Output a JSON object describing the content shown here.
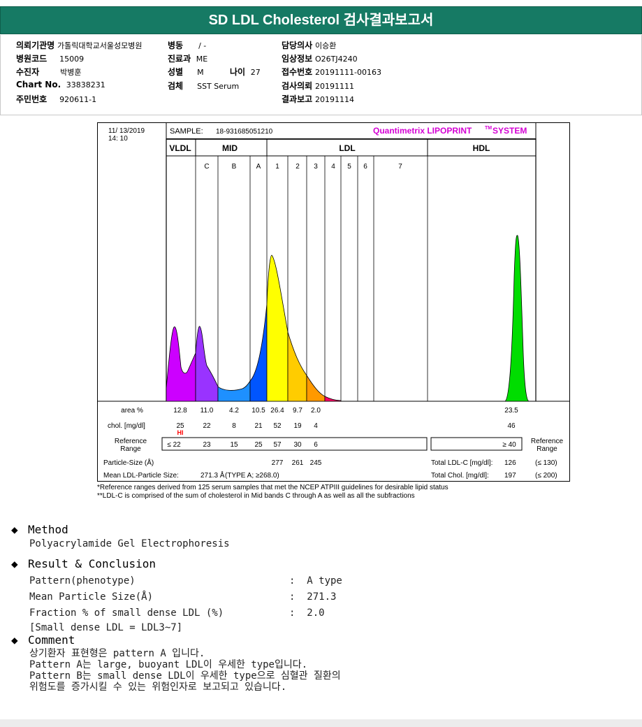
{
  "report": {
    "title": "SD LDL Cholesterol 검사결과보고서"
  },
  "info": {
    "col1": [
      {
        "label": "의뢰기관명",
        "value": "가톨릭대학교서울성모병원"
      },
      {
        "label": "병원코드",
        "value": "15009"
      },
      {
        "label": "수진자",
        "value": "박병훈"
      },
      {
        "label": "Chart No.",
        "value": "33838231"
      },
      {
        "label": "주민번호",
        "value": "920611-1"
      }
    ],
    "col2": [
      {
        "label": "병동",
        "value": "/ -"
      },
      {
        "label": "진료과",
        "value": "ME"
      },
      {
        "label": "성별",
        "value": "M"
      },
      {
        "label": "검체",
        "value": "SST Serum"
      }
    ],
    "age": {
      "label": "나이",
      "value": "27"
    },
    "col3": [
      {
        "label": "담당의사",
        "value": "이승환"
      },
      {
        "label": "임상정보",
        "value": "O26TJ4240"
      },
      {
        "label": "접수번호",
        "value": "20191111-00163"
      },
      {
        "label": "검사의뢰",
        "value": "20191111"
      },
      {
        "label": "결과보고",
        "value": "20191114"
      }
    ]
  },
  "chart": {
    "date": "11/ 13/2019",
    "time": "14: 10",
    "sample_label": "SAMPLE:",
    "sample_id": "18-931685051210",
    "brand": "Quantimetrix LIPOPRINT",
    "brand_tm": "TM",
    "brand_system": "SYSTEM",
    "groups": {
      "vldl": "VLDL",
      "mid": "MID",
      "ldl": "LDL",
      "hdl": "HDL"
    },
    "bands": [
      "C",
      "B",
      "A",
      "1",
      "2",
      "3",
      "4",
      "5",
      "6",
      "7"
    ],
    "colors": {
      "vldl": "#cc00ff",
      "midc": "#9933ff",
      "midb": "#1e90ff",
      "mida": "#0055ff",
      "ldl1": "#ffff00",
      "ldl2": "#ffcc00",
      "ldl3": "#ff9900",
      "ldl4": "#ff0066",
      "hdl": "#00dd00",
      "brand": "#d400d4",
      "hi": "#ff0000"
    },
    "table": {
      "area_label": "area %",
      "area": [
        "12.8",
        "11.0",
        "4.2",
        "10.5",
        "26.4",
        "9.7",
        "2.0"
      ],
      "hdl_area": "23.5",
      "chol_label": "chol. [mg/dl]",
      "chol": [
        "25",
        "22",
        "8",
        "21",
        "52",
        "19",
        "4"
      ],
      "hdl_chol": "46",
      "hi_flag": "HI",
      "ref_label_1": "Reference",
      "ref_label_2": "Range",
      "ref": [
        "≤ 22",
        "23",
        "15",
        "25",
        "57",
        "30",
        "6"
      ],
      "hdl_ref": "≥ 40",
      "particle_label": "Particle-Size (Å)",
      "particle": [
        "277",
        "261",
        "245"
      ],
      "mean_label": "Mean LDL-Particle Size:",
      "mean_value": "271.3 Å",
      "mean_type": "(TYPE A; ≥268.0)",
      "total_ldl_label": "Total LDL-C [mg/dl]:",
      "total_ldl_value": "126",
      "total_ldl_ref": "(≤ 130)",
      "total_chol_label": "Total Chol. [mg/dl]:",
      "total_chol_value": "197",
      "total_chol_ref": "(≤ 200)"
    }
  },
  "footnotes": {
    "line1": "*Reference ranges derived from 125 serum samples that met the NCEP ATPIII guidelines for desirable lipid status",
    "line2": "**LDL-C is comprised of the sum of cholesterol in Mid bands C through A as well as all the subfractions"
  },
  "method": {
    "bullet": "◆",
    "title": "Method",
    "text": "Polyacrylamide Gel Electrophoresis"
  },
  "result": {
    "bullet": "◆",
    "title": "Result & Conclusion",
    "rows": [
      {
        "label": "Pattern(phenotype)",
        "value": ":  A type"
      },
      {
        "label": "Mean Particle Size(Å)",
        "value": ":  271.3"
      },
      {
        "label": "Fraction % of small dense LDL (%)",
        "value": ":  2.0"
      }
    ],
    "note": "[Small dense LDL = LDL3~7]"
  },
  "comment": {
    "bullet": "◆",
    "title": "Comment",
    "lines": [
      "상기환자 표현형은 pattern A 입니다.",
      "Pattern A는 large, buoyant LDL이 우세한 type입니다.",
      "Pattern B는 small dense LDL이 우세한 type으로 심혈관 질환의",
      "위험도를 증가시킬 수 있는 위험인자로 보고되고 있습니다."
    ]
  }
}
